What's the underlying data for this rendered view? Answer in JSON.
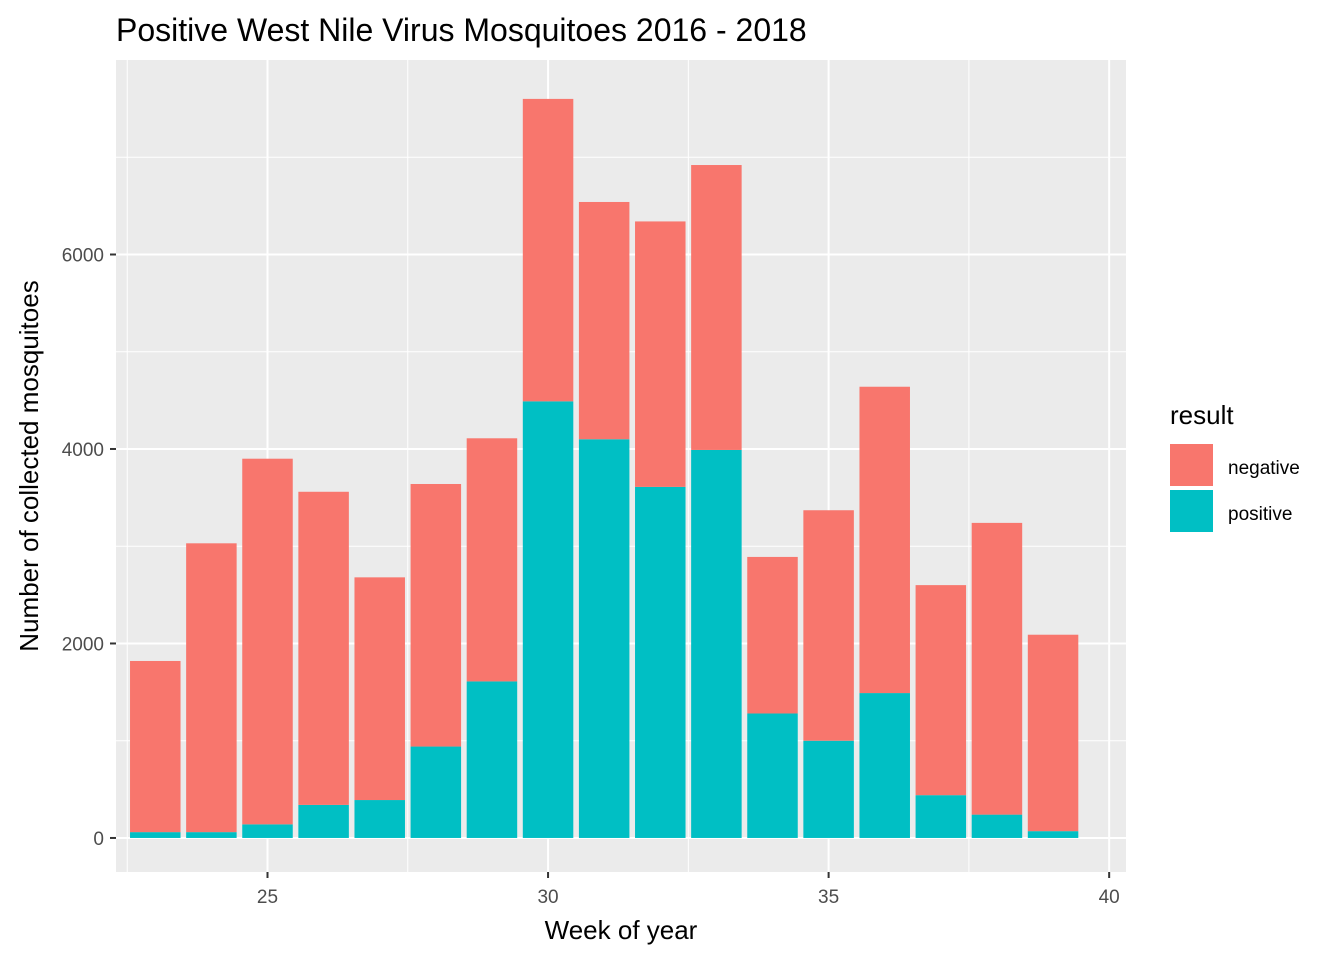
{
  "chart_data": {
    "type": "bar",
    "stacked": true,
    "title": "Positive West Nile Virus Mosquitoes 2016 - 2018",
    "xlabel": "Week of year",
    "ylabel": "Number of collected mosquitoes",
    "x": [
      23,
      24,
      25,
      26,
      27,
      28,
      29,
      30,
      31,
      32,
      33,
      34,
      35,
      36,
      37,
      38,
      39
    ],
    "series": [
      {
        "name": "positive",
        "color": "#00BFC4",
        "values": [
          60,
          60,
          140,
          340,
          390,
          940,
          1610,
          4490,
          4100,
          3610,
          3990,
          1280,
          1000,
          1490,
          440,
          240,
          70
        ]
      },
      {
        "name": "negative",
        "color": "#F8766D",
        "values": [
          1760,
          2970,
          3760,
          3220,
          2290,
          2700,
          2500,
          3110,
          2440,
          2730,
          2930,
          1610,
          2370,
          3150,
          2160,
          3000,
          2020
        ]
      }
    ],
    "totals": [
      1820,
      3030,
      3900,
      3560,
      2680,
      3640,
      4110,
      7600,
      6540,
      6340,
      6920,
      2890,
      3370,
      4640,
      2600,
      3240,
      2090
    ],
    "xlim": [
      22.3,
      40.3
    ],
    "ylim": [
      -350,
      8000
    ],
    "xticks": [
      25,
      30,
      35,
      40
    ],
    "xtick_labels": [
      "25",
      "30",
      "35",
      "40"
    ],
    "yticks": [
      0,
      2000,
      4000,
      6000
    ],
    "ytick_labels": [
      "0",
      "2000",
      "4000",
      "6000"
    ],
    "grid": true,
    "background": "#EBEBEB",
    "legend": {
      "title": "result",
      "position": "right",
      "entries": [
        {
          "label": "negative",
          "color": "#F8766D"
        },
        {
          "label": "positive",
          "color": "#00BFC4"
        }
      ]
    }
  }
}
